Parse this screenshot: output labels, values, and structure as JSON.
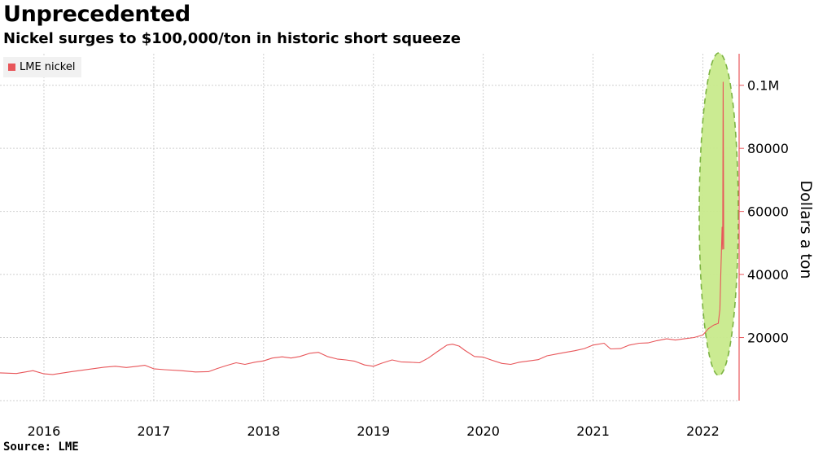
{
  "header": {
    "title": "Unprecedented",
    "subtitle": "Nickel surges to $100,000/ton in historic short squeeze"
  },
  "footer": {
    "source": "Source: LME"
  },
  "legend": {
    "label": "LME nickel",
    "color": "#e8565a"
  },
  "annotation": {
    "shape": "ellipse",
    "fill": "#c8ea8c",
    "stroke": "#7cb342",
    "style": "dashed"
  },
  "chart_data": {
    "type": "line",
    "title": "Unprecedented",
    "subtitle": "Nickel surges to $100,000/ton in historic short squeeze",
    "ylabel": "Dollars a ton",
    "xlabel": "",
    "y_ticks": [
      {
        "value": 20000,
        "label": "20000"
      },
      {
        "value": 40000,
        "label": "40000"
      },
      {
        "value": 60000,
        "label": "60000"
      },
      {
        "value": 80000,
        "label": "80000"
      },
      {
        "value": 100000,
        "label": "0.1M"
      }
    ],
    "x_ticks": [
      "2016",
      "2017",
      "2018",
      "2019",
      "2020",
      "2021",
      "2022"
    ],
    "x_tick_years": [
      2016,
      2017,
      2018,
      2019,
      2020,
      2021,
      2022
    ],
    "xlim": [
      2015.6,
      2022.33
    ],
    "ylim": [
      0,
      110000
    ],
    "grid": true,
    "legend_position": "top-left",
    "series": [
      {
        "name": "LME nickel",
        "color": "#e8565a",
        "points": [
          [
            2015.6,
            8800
          ],
          [
            2015.75,
            8600
          ],
          [
            2015.9,
            9500
          ],
          [
            2016.0,
            8500
          ],
          [
            2016.08,
            8300
          ],
          [
            2016.25,
            9200
          ],
          [
            2016.4,
            9900
          ],
          [
            2016.55,
            10600
          ],
          [
            2016.65,
            10900
          ],
          [
            2016.75,
            10500
          ],
          [
            2016.85,
            10900
          ],
          [
            2016.92,
            11200
          ],
          [
            2017.0,
            10100
          ],
          [
            2017.1,
            9800
          ],
          [
            2017.25,
            9500
          ],
          [
            2017.38,
            9100
          ],
          [
            2017.5,
            9200
          ],
          [
            2017.58,
            10200
          ],
          [
            2017.66,
            11100
          ],
          [
            2017.75,
            12000
          ],
          [
            2017.83,
            11500
          ],
          [
            2017.92,
            12200
          ],
          [
            2018.0,
            12600
          ],
          [
            2018.08,
            13500
          ],
          [
            2018.17,
            13900
          ],
          [
            2018.25,
            13500
          ],
          [
            2018.33,
            14000
          ],
          [
            2018.42,
            15000
          ],
          [
            2018.5,
            15300
          ],
          [
            2018.58,
            14000
          ],
          [
            2018.67,
            13200
          ],
          [
            2018.75,
            12900
          ],
          [
            2018.83,
            12500
          ],
          [
            2018.92,
            11300
          ],
          [
            2019.0,
            10900
          ],
          [
            2019.08,
            11900
          ],
          [
            2019.17,
            12900
          ],
          [
            2019.25,
            12300
          ],
          [
            2019.33,
            12200
          ],
          [
            2019.42,
            12000
          ],
          [
            2019.5,
            13500
          ],
          [
            2019.58,
            15500
          ],
          [
            2019.67,
            17600
          ],
          [
            2019.72,
            17900
          ],
          [
            2019.78,
            17300
          ],
          [
            2019.83,
            16000
          ],
          [
            2019.92,
            14000
          ],
          [
            2020.0,
            13800
          ],
          [
            2020.08,
            12800
          ],
          [
            2020.17,
            11800
          ],
          [
            2020.25,
            11500
          ],
          [
            2020.33,
            12200
          ],
          [
            2020.42,
            12600
          ],
          [
            2020.5,
            13000
          ],
          [
            2020.58,
            14200
          ],
          [
            2020.67,
            14800
          ],
          [
            2020.75,
            15300
          ],
          [
            2020.83,
            15800
          ],
          [
            2020.92,
            16500
          ],
          [
            2021.0,
            17600
          ],
          [
            2021.1,
            18200
          ],
          [
            2021.16,
            16400
          ],
          [
            2021.25,
            16500
          ],
          [
            2021.33,
            17600
          ],
          [
            2021.42,
            18200
          ],
          [
            2021.5,
            18300
          ],
          [
            2021.58,
            19000
          ],
          [
            2021.67,
            19600
          ],
          [
            2021.75,
            19200
          ],
          [
            2021.83,
            19600
          ],
          [
            2021.92,
            20000
          ],
          [
            2022.0,
            20800
          ],
          [
            2022.05,
            22800
          ],
          [
            2022.1,
            24000
          ],
          [
            2022.14,
            24500
          ],
          [
            2022.155,
            29000
          ],
          [
            2022.165,
            42000
          ],
          [
            2022.175,
            55000
          ],
          [
            2022.18,
            48000
          ],
          [
            2022.185,
            101000
          ],
          [
            2022.19,
            48000
          ]
        ]
      }
    ]
  }
}
